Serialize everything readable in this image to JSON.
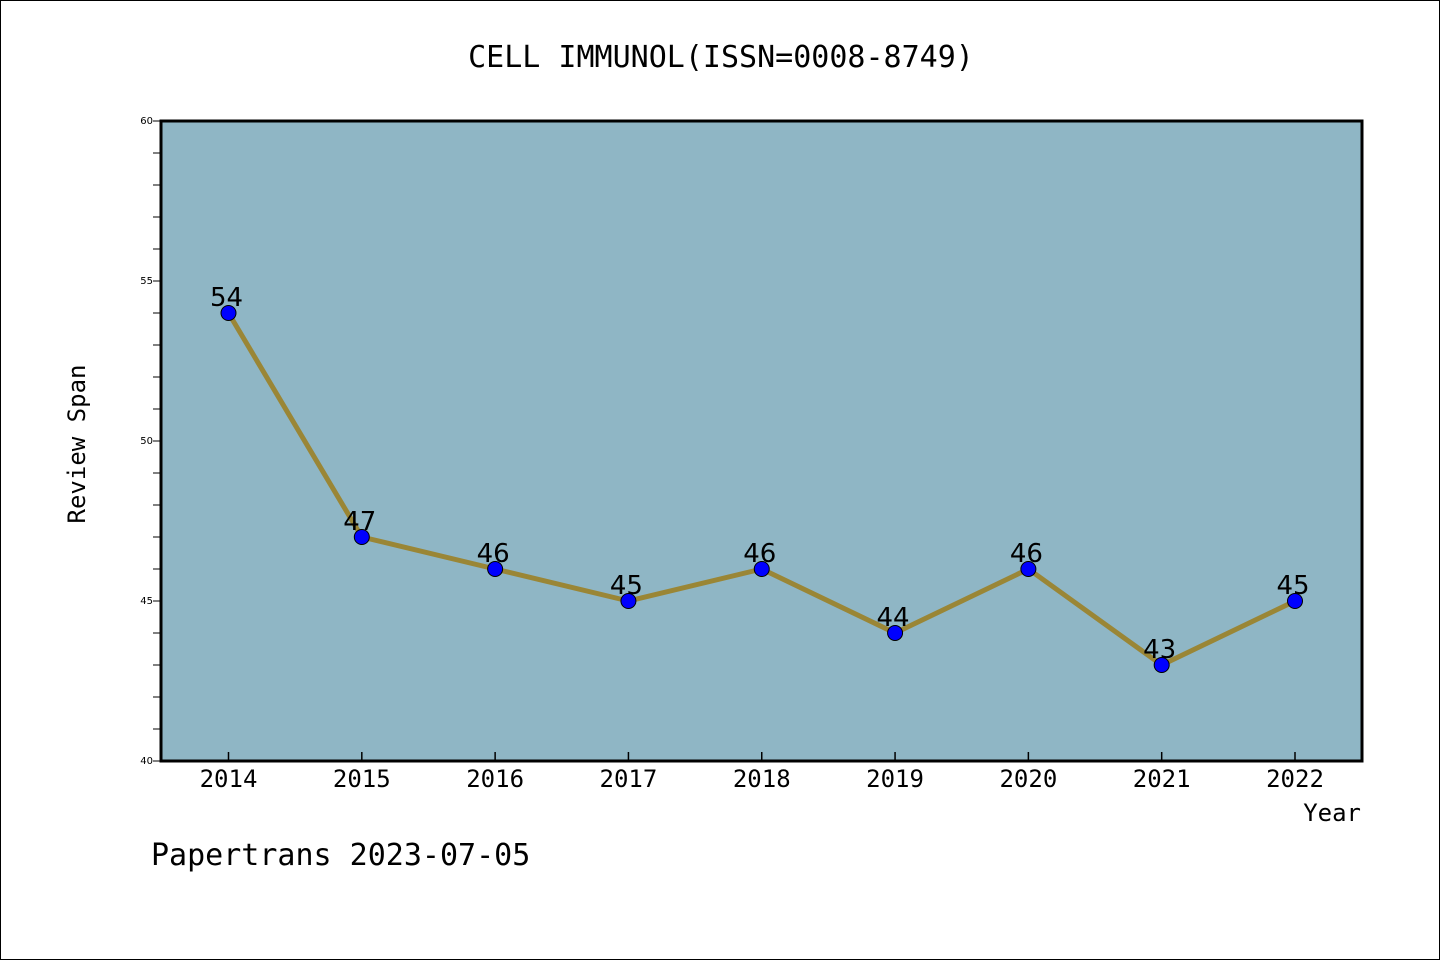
{
  "chart_data": {
    "type": "line",
    "title": "CELL IMMUNOL(ISSN=0008-8749)",
    "xlabel": "Year",
    "ylabel": "Review Span",
    "categories": [
      "2014",
      "2015",
      "2016",
      "2017",
      "2018",
      "2019",
      "2020",
      "2021",
      "2022"
    ],
    "series": [
      {
        "values": [
          54,
          47,
          46,
          45,
          46,
          44,
          46,
          43,
          45
        ]
      }
    ],
    "ylim": [
      40,
      60
    ],
    "y_ticks": [
      40,
      45,
      50,
      55,
      60
    ],
    "grid": false,
    "data_labels": true,
    "colors": {
      "plot_background": "#8fb6c5",
      "line": "#9a8636",
      "marker": "#0000ff"
    }
  },
  "footer": "Papertrans 2023-07-05"
}
